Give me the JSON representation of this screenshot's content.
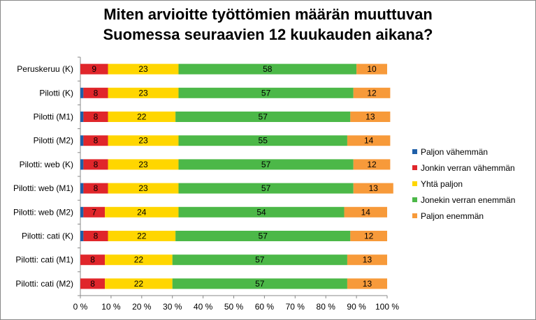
{
  "chart_data": {
    "type": "bar",
    "orientation": "horizontal",
    "stacked": true,
    "percent": true,
    "title": [
      "Miten arvioitte työttömien määrän muuttuvan",
      "Suomessa seuraavien 12 kuukauden aikana?"
    ],
    "xlim": [
      0,
      100
    ],
    "x_ticks": [
      "0 %",
      "10 %",
      "20 %",
      "30 %",
      "40 %",
      "50 %",
      "60 %",
      "70 %",
      "80 %",
      "90 %",
      "100 %"
    ],
    "grid": false,
    "legend_position": "right",
    "categories": [
      "Peruskeruu (K)",
      "Pilotti (K)",
      "Pilotti (M1)",
      "Pilotti (M2)",
      "Pilotti: web (K)",
      "Pilotti: web (M1)",
      "Pilotti: web (M2)",
      "Pilotti: cati (K)",
      "Pilotti: cati (M1)",
      "Pilotti: cati (M2)"
    ],
    "series": [
      {
        "name": "Paljon vähemmän",
        "color": "#1f5fa8",
        "values": [
          0,
          1,
          1,
          1,
          1,
          1,
          1,
          1,
          0,
          0
        ],
        "labels": [
          "",
          "",
          "",
          "",
          "",
          "",
          "",
          "",
          "",
          ""
        ]
      },
      {
        "name": "Jonkin verran vähemmän",
        "color": "#e0262b",
        "values": [
          9,
          8,
          8,
          8,
          8,
          8,
          7,
          8,
          8,
          8
        ],
        "labels": [
          "9",
          "8",
          "8",
          "8",
          "8",
          "8",
          "7",
          "8",
          "8",
          "8"
        ]
      },
      {
        "name": "Yhtä paljon",
        "color": "#ffd600",
        "values": [
          23,
          23,
          22,
          23,
          23,
          23,
          24,
          22,
          22,
          22
        ],
        "labels": [
          "23",
          "23",
          "22",
          "23",
          "23",
          "23",
          "24",
          "22",
          "22",
          "22"
        ]
      },
      {
        "name": "Jonekin verran enemmän",
        "color": "#4cb848",
        "values": [
          58,
          57,
          57,
          55,
          57,
          57,
          54,
          57,
          57,
          57
        ],
        "labels": [
          "58",
          "57",
          "57",
          "55",
          "57",
          "57",
          "54",
          "57",
          "57",
          "57"
        ]
      },
      {
        "name": "Paljon enemmän",
        "color": "#f79a3a",
        "values": [
          10,
          12,
          13,
          14,
          12,
          13,
          14,
          12,
          13,
          13
        ],
        "labels": [
          "10",
          "12",
          "13",
          "14",
          "12",
          "13",
          "14",
          "12",
          "13",
          "13"
        ]
      }
    ]
  }
}
